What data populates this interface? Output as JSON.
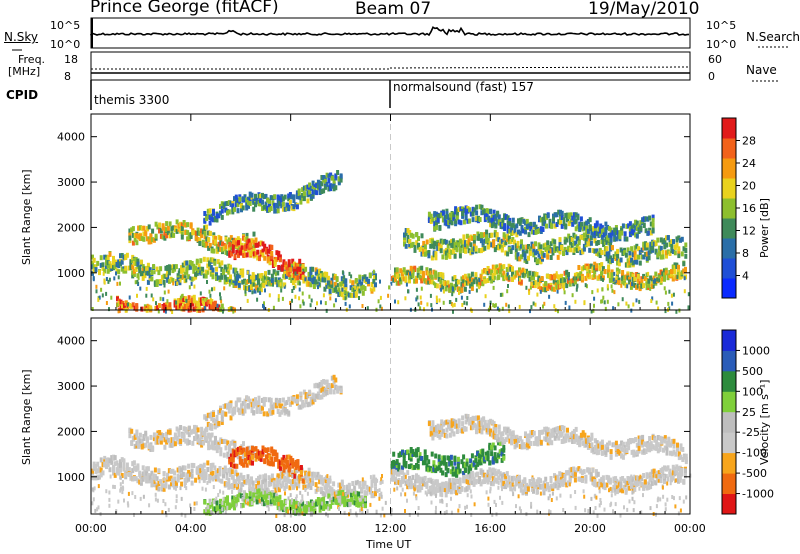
{
  "header": {
    "station": "Prince George (fitACF)",
    "beam": "Beam 07",
    "date": "19/May/2010"
  },
  "strips": {
    "nsky_label": "N.Sky",
    "nsky_ticks": [
      "10^5",
      "10^0"
    ],
    "nsearch_label": "N.Search",
    "nsearch_ticks": [
      "10^5",
      "10^0"
    ],
    "freq_label_1": "Freq.",
    "freq_label_2": "[MHz]",
    "freq_ticks": [
      "18",
      "8"
    ],
    "nave_label": "Nave",
    "nave_ticks": [
      "60",
      "0"
    ],
    "cpid_label": "CPID",
    "cpid_modes": [
      "themis 3300",
      "normalsound (fast) 157"
    ]
  },
  "colors": {
    "power_scale": [
      "#0a2aff",
      "#1f4fd6",
      "#2a6ea8",
      "#3f8a5a",
      "#8dbf2e",
      "#e9d21e",
      "#f59a10",
      "#f2621b",
      "#e11b1b"
    ],
    "velocity_scale": [
      "#e01616",
      "#f06a10",
      "#f7a51c",
      "#c9c9c9",
      "#bebebe",
      "#7fcf3a",
      "#2d8b3d",
      "#2a5cb8",
      "#1a2ad8"
    ],
    "grid_dash": "#c9c9c9"
  },
  "chart_data": [
    {
      "type": "heatmap",
      "panel": "power",
      "ylabel": "Slant Range [km]",
      "yticks": [
        "1000",
        "2000",
        "3000",
        "4000"
      ],
      "xticks": [
        "00:00",
        "04:00",
        "08:00",
        "12:00",
        "16:00",
        "20:00",
        "00:00"
      ],
      "ylim": [
        180,
        4500
      ],
      "xlim": [
        0,
        24
      ],
      "colorbar": {
        "label": "Power [dB]",
        "ticks": [
          "4",
          "8",
          "12",
          "16",
          "20",
          "24",
          "28"
        ],
        "range": [
          0,
          30
        ]
      },
      "bands": [
        {
          "t0": 0.0,
          "t1": 11.4,
          "r0": 1200,
          "r1": 800,
          "width": 260,
          "power": 14
        },
        {
          "t0": 1.0,
          "t1": 5.7,
          "r0": 300,
          "r1": 230,
          "width": 180,
          "power": 24
        },
        {
          "t0": 1.5,
          "t1": 6.5,
          "r0": 2000,
          "r1": 1700,
          "width": 230,
          "power": 18
        },
        {
          "t0": 5.5,
          "t1": 8.5,
          "r0": 1600,
          "r1": 1200,
          "width": 250,
          "power": 26
        },
        {
          "t0": 4.5,
          "t1": 10.0,
          "r0": 2300,
          "r1": 3000,
          "width": 220,
          "power": 10
        },
        {
          "t0": 12.0,
          "t1": 23.8,
          "r0": 900,
          "r1": 1000,
          "width": 200,
          "power": 18
        },
        {
          "t0": 12.5,
          "t1": 23.8,
          "r0": 1700,
          "r1": 1500,
          "width": 260,
          "power": 14
        },
        {
          "t0": 13.5,
          "t1": 22.5,
          "r0": 2300,
          "r1": 2000,
          "width": 220,
          "power": 10
        }
      ]
    },
    {
      "type": "heatmap",
      "panel": "velocity",
      "ylabel": "Slant Range [km]",
      "yticks": [
        "1000",
        "2000",
        "3000",
        "4000"
      ],
      "xticks": [
        "00:00",
        "04:00",
        "08:00",
        "12:00",
        "16:00",
        "20:00",
        "00:00"
      ],
      "ylim": [
        180,
        4500
      ],
      "xlim": [
        0,
        24
      ],
      "xlabel": "Time UT",
      "colorbar": {
        "label": "Velocity [m s⁻¹]",
        "ticks": [
          "1000",
          "500",
          "100",
          "25",
          "-25",
          "-100",
          "-500",
          "-1000"
        ]
      },
      "bands": [
        {
          "t0": 0.0,
          "t1": 11.4,
          "r0": 1200,
          "r1": 800,
          "width": 260,
          "velocity": 0
        },
        {
          "t0": 1.5,
          "t1": 6.5,
          "r0": 2000,
          "r1": 1700,
          "width": 230,
          "velocity": 0
        },
        {
          "t0": 5.5,
          "t1": 8.5,
          "r0": 1600,
          "r1": 1200,
          "width": 250,
          "velocity": -400
        },
        {
          "t0": 4.5,
          "t1": 11.0,
          "r0": 500,
          "r1": 450,
          "width": 180,
          "velocity": 150
        },
        {
          "t0": 4.5,
          "t1": 10.0,
          "r0": 2300,
          "r1": 3000,
          "width": 220,
          "velocity": 0
        },
        {
          "t0": 12.0,
          "t1": 16.5,
          "r0": 1300,
          "r1": 1500,
          "width": 260,
          "velocity": 300
        },
        {
          "t0": 12.0,
          "t1": 23.8,
          "r0": 900,
          "r1": 1000,
          "width": 200,
          "velocity": 0
        },
        {
          "t0": 13.5,
          "t1": 23.8,
          "r0": 2200,
          "r1": 1600,
          "width": 220,
          "velocity": 0
        }
      ]
    }
  ]
}
